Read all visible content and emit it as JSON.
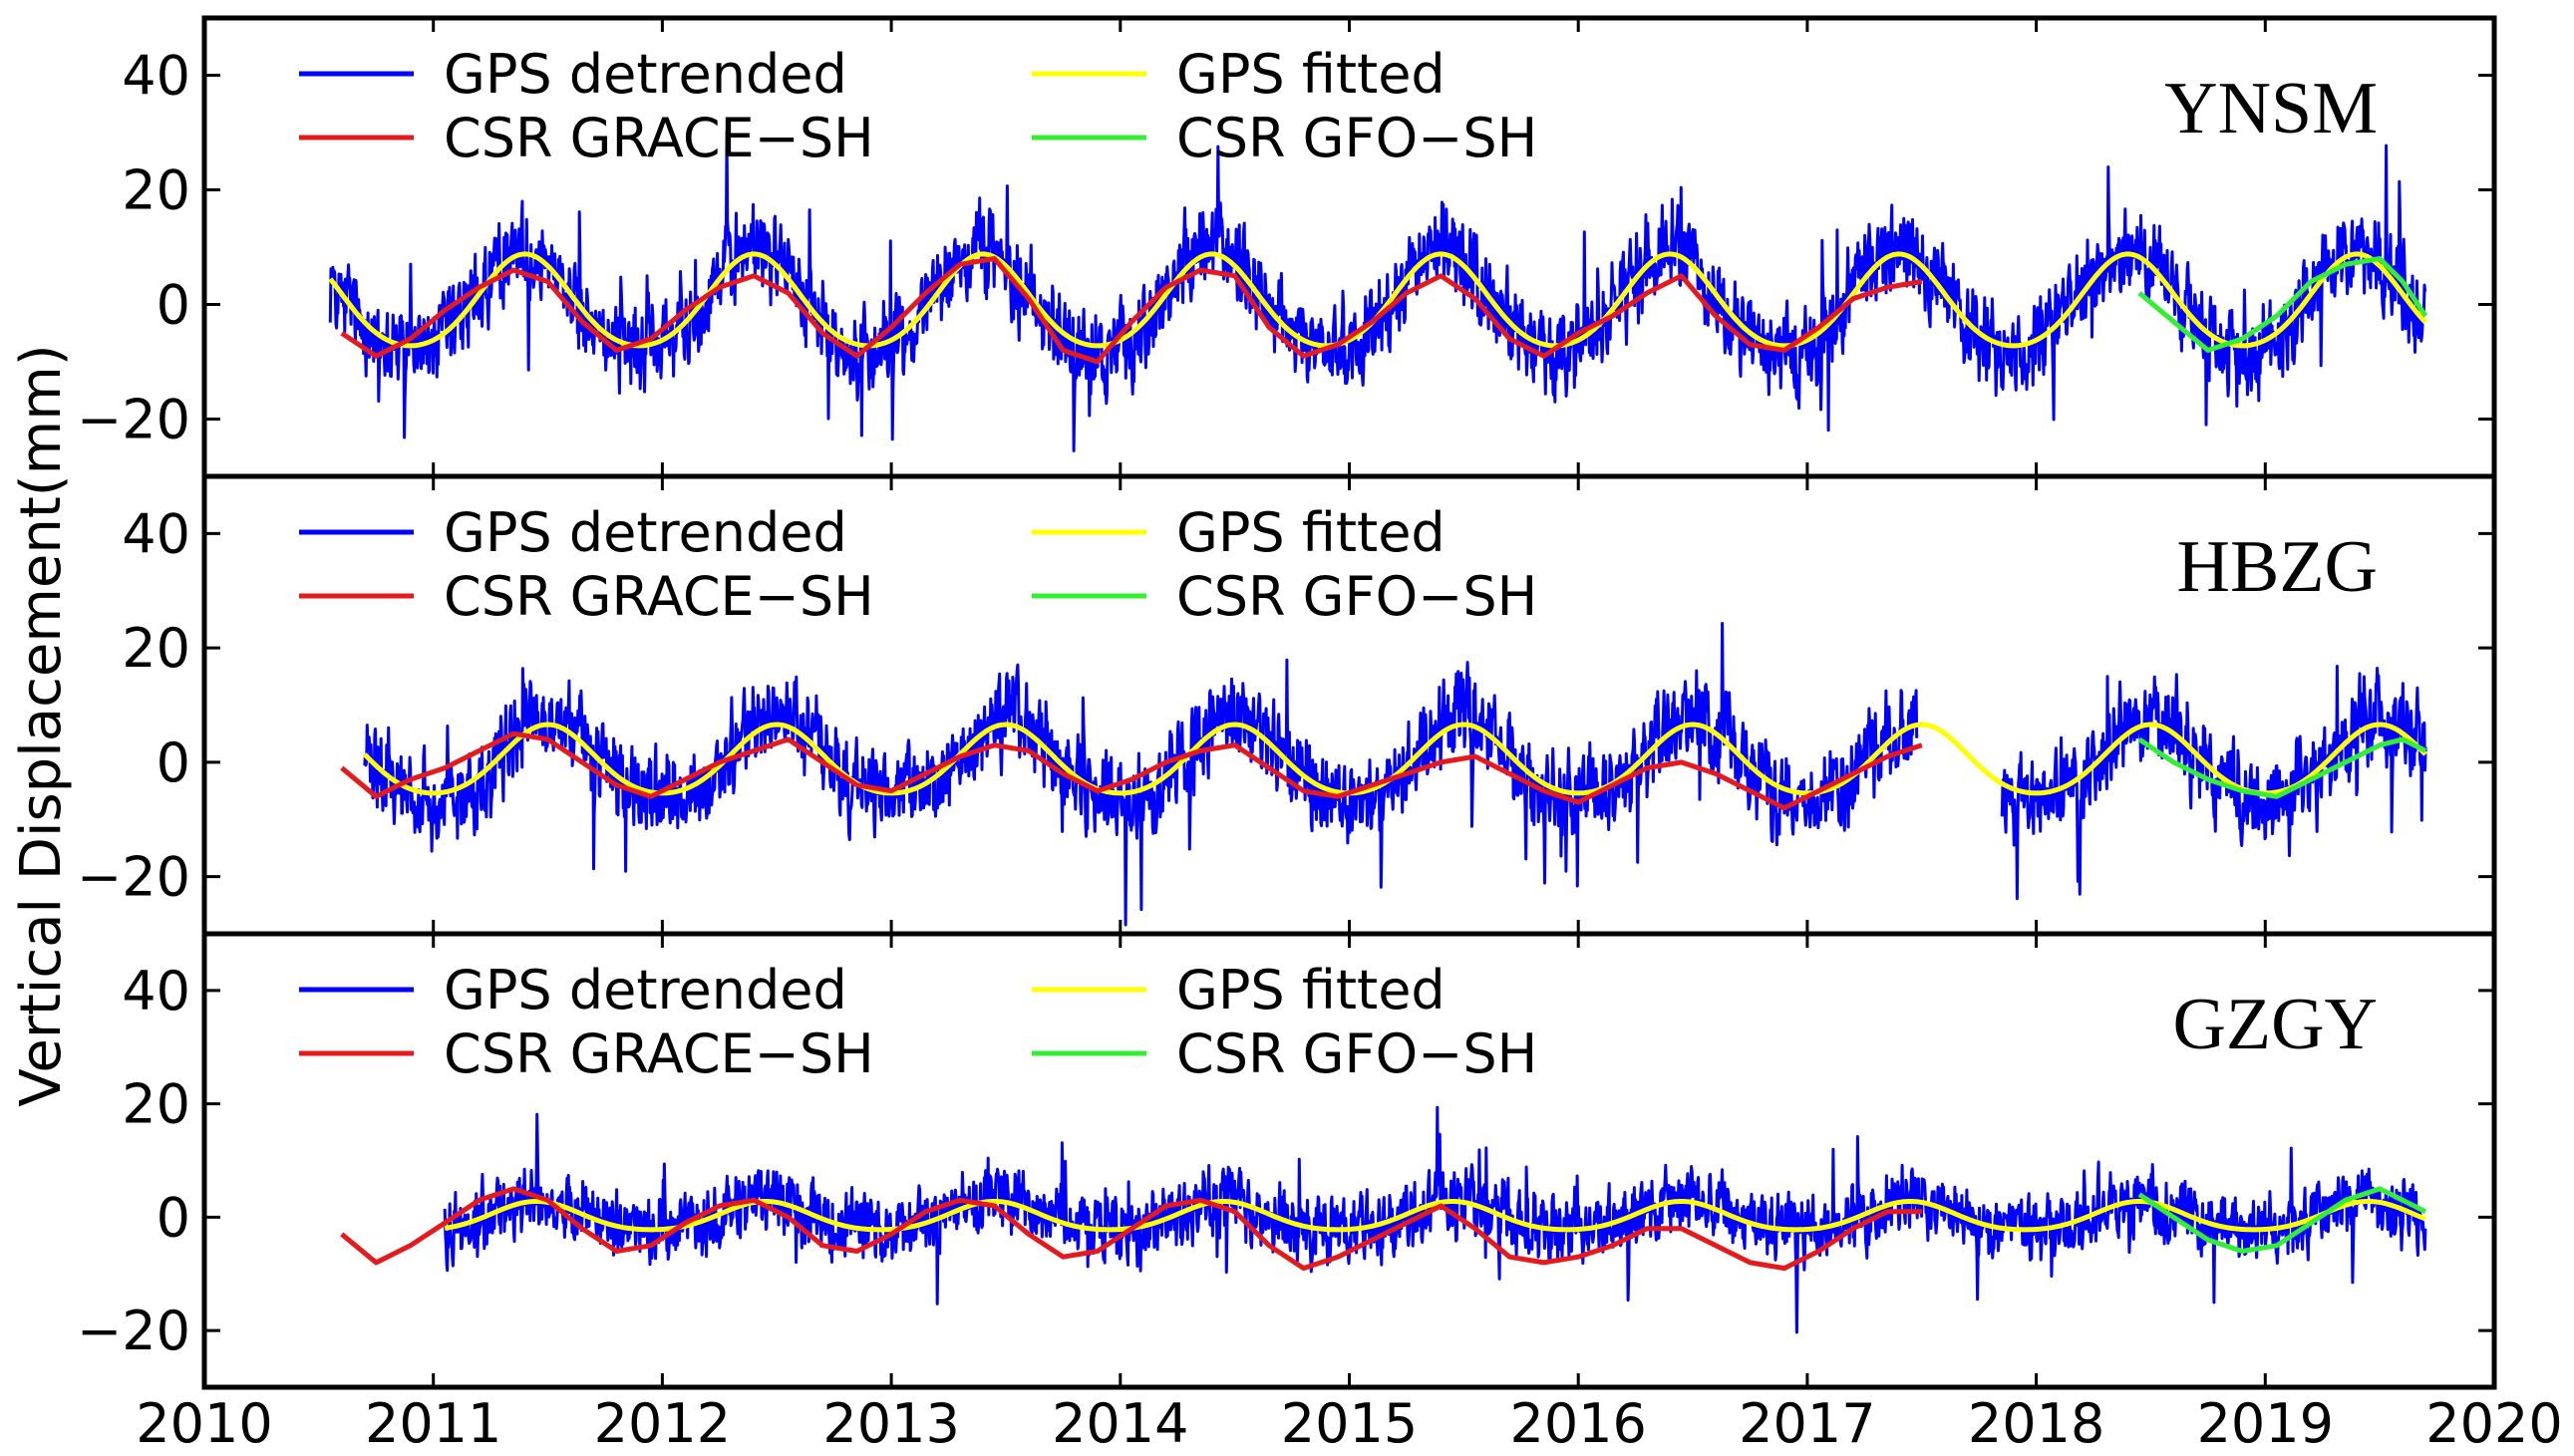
{
  "chart_data": {
    "type": "line",
    "ylabel": "Vertical Displacement(mm)",
    "xlabel": "",
    "xlim": [
      2010,
      2020
    ],
    "x_ticks": [
      "2010",
      "2011",
      "2012",
      "2013",
      "2014",
      "2015",
      "2016",
      "2017",
      "2018",
      "2019",
      "2020"
    ],
    "colors": {
      "gps_detrended": "#0000ff",
      "gps_fitted": "#ffff00",
      "grace": "#e41a1c",
      "gfo": "#33ee33"
    },
    "legend": [
      "GPS detrended",
      "GPS fitted",
      "CSR GRACE−SH",
      "CSR GFO−SH"
    ],
    "panels": [
      {
        "station": "YNSM",
        "ylim": [
          -30,
          50
        ],
        "y_ticks": [
          "40",
          "20",
          "0",
          "−20"
        ],
        "gps_detrended": {
          "start": 2010.55,
          "end": 2019.7,
          "annual_amplitude": 9,
          "annual_peak": 0.4,
          "semiannual_amplitude": 1,
          "noise": 6.5,
          "offset": 0
        },
        "gps_fitted": {
          "start": 2010.55,
          "end": 2019.7,
          "annual_amplitude": 8,
          "annual_peak": 0.4,
          "semiannual_amplitude": 0.8,
          "offset": 0
        },
        "grace": [
          [
            2010.6,
            -5
          ],
          [
            2010.75,
            -9
          ],
          [
            2010.9,
            -6
          ],
          [
            2011.05,
            -1
          ],
          [
            2011.2,
            3
          ],
          [
            2011.35,
            6
          ],
          [
            2011.5,
            4
          ],
          [
            2011.65,
            -3
          ],
          [
            2011.8,
            -8
          ],
          [
            2011.95,
            -6
          ],
          [
            2012.1,
            -1
          ],
          [
            2012.25,
            3
          ],
          [
            2012.4,
            5
          ],
          [
            2012.55,
            2
          ],
          [
            2012.7,
            -5
          ],
          [
            2012.85,
            -9
          ],
          [
            2013.0,
            -4
          ],
          [
            2013.15,
            2
          ],
          [
            2013.3,
            7
          ],
          [
            2013.45,
            8
          ],
          [
            2013.6,
            1
          ],
          [
            2013.75,
            -8
          ],
          [
            2013.9,
            -10
          ],
          [
            2014.05,
            -3
          ],
          [
            2014.2,
            3
          ],
          [
            2014.35,
            6
          ],
          [
            2014.5,
            5
          ],
          [
            2014.65,
            -4
          ],
          [
            2014.8,
            -9
          ],
          [
            2014.95,
            -7
          ],
          [
            2015.1,
            -3
          ],
          [
            2015.25,
            2
          ],
          [
            2015.4,
            5
          ],
          [
            2015.55,
            1
          ],
          [
            2015.7,
            -6
          ],
          [
            2015.85,
            -9
          ],
          [
            2016.0,
            -5
          ],
          [
            2016.15,
            -2
          ],
          [
            2016.3,
            2
          ],
          [
            2016.45,
            5
          ],
          [
            2016.6,
            -2
          ],
          [
            2016.75,
            -7
          ],
          [
            2016.9,
            -8
          ],
          [
            2017.05,
            -4
          ],
          [
            2017.2,
            1
          ],
          [
            2017.35,
            3
          ],
          [
            2017.5,
            4
          ]
        ],
        "gfo": [
          [
            2018.45,
            2
          ],
          [
            2018.6,
            -3
          ],
          [
            2018.75,
            -8
          ],
          [
            2018.9,
            -6
          ],
          [
            2019.05,
            -2
          ],
          [
            2019.2,
            4
          ],
          [
            2019.35,
            7
          ],
          [
            2019.5,
            8
          ],
          [
            2019.6,
            4
          ],
          [
            2019.7,
            -2
          ]
        ]
      },
      {
        "station": "HBZG",
        "ylim": [
          -30,
          50
        ],
        "y_ticks": [
          "40",
          "20",
          "0",
          "−20"
        ],
        "gps_detrended": {
          "start": 2010.7,
          "end": 2019.7,
          "annual_amplitude": 7,
          "annual_peak": 0.5,
          "semiannual_amplitude": 1,
          "noise": 6.5,
          "offset": 0,
          "gaps": [
            [
              2017.48,
              2017.85
            ]
          ]
        },
        "gps_fitted": {
          "start": 2010.7,
          "end": 2019.7,
          "annual_amplitude": 6,
          "annual_peak": 0.5,
          "semiannual_amplitude": 0.6,
          "offset": 0
        },
        "grace": [
          [
            2010.6,
            -1
          ],
          [
            2010.75,
            -6
          ],
          [
            2010.9,
            -3
          ],
          [
            2011.05,
            -1
          ],
          [
            2011.2,
            2
          ],
          [
            2011.35,
            5
          ],
          [
            2011.5,
            4
          ],
          [
            2011.65,
            0
          ],
          [
            2011.8,
            -4
          ],
          [
            2011.95,
            -6
          ],
          [
            2012.1,
            -3
          ],
          [
            2012.25,
            0
          ],
          [
            2012.4,
            2
          ],
          [
            2012.55,
            4
          ],
          [
            2012.7,
            0
          ],
          [
            2012.85,
            -4
          ],
          [
            2013.0,
            -5
          ],
          [
            2013.15,
            -2
          ],
          [
            2013.3,
            1
          ],
          [
            2013.45,
            3
          ],
          [
            2013.6,
            2
          ],
          [
            2013.75,
            -2
          ],
          [
            2013.9,
            -5
          ],
          [
            2014.05,
            -3
          ],
          [
            2014.2,
            0
          ],
          [
            2014.35,
            2
          ],
          [
            2014.5,
            3
          ],
          [
            2014.65,
            -1
          ],
          [
            2014.8,
            -5
          ],
          [
            2014.95,
            -6
          ],
          [
            2015.1,
            -4
          ],
          [
            2015.25,
            -2
          ],
          [
            2015.4,
            0
          ],
          [
            2015.55,
            1
          ],
          [
            2015.7,
            -2
          ],
          [
            2015.85,
            -5
          ],
          [
            2016.0,
            -7
          ],
          [
            2016.15,
            -4
          ],
          [
            2016.3,
            -1
          ],
          [
            2016.45,
            0
          ],
          [
            2016.6,
            -2
          ],
          [
            2016.75,
            -5
          ],
          [
            2016.9,
            -8
          ],
          [
            2017.05,
            -5
          ],
          [
            2017.2,
            -2
          ],
          [
            2017.35,
            1
          ],
          [
            2017.5,
            3
          ]
        ],
        "gfo": [
          [
            2018.45,
            4
          ],
          [
            2018.6,
            0
          ],
          [
            2018.75,
            -3
          ],
          [
            2018.9,
            -5
          ],
          [
            2019.05,
            -6
          ],
          [
            2019.2,
            -3
          ],
          [
            2019.35,
            0
          ],
          [
            2019.5,
            3
          ],
          [
            2019.6,
            4
          ],
          [
            2019.7,
            2
          ]
        ]
      },
      {
        "station": "GZGY",
        "ylim": [
          -30,
          50
        ],
        "y_ticks": [
          "40",
          "20",
          "0",
          "−20"
        ],
        "gps_detrended": {
          "start": 2011.05,
          "end": 2019.7,
          "annual_amplitude": 2.5,
          "annual_peak": 0.45,
          "semiannual_amplitude": 0.5,
          "noise": 5,
          "offset": 0
        },
        "gps_fitted": {
          "start": 2011.05,
          "end": 2019.7,
          "annual_amplitude": 2.5,
          "annual_peak": 0.45,
          "semiannual_amplitude": 0.3,
          "offset": 0
        },
        "grace": [
          [
            2010.6,
            -3
          ],
          [
            2010.75,
            -8
          ],
          [
            2010.9,
            -5
          ],
          [
            2011.05,
            -1
          ],
          [
            2011.2,
            3
          ],
          [
            2011.35,
            5
          ],
          [
            2011.5,
            3
          ],
          [
            2011.65,
            -2
          ],
          [
            2011.8,
            -6
          ],
          [
            2011.95,
            -5
          ],
          [
            2012.1,
            -1
          ],
          [
            2012.25,
            2
          ],
          [
            2012.4,
            3
          ],
          [
            2012.55,
            0
          ],
          [
            2012.7,
            -5
          ],
          [
            2012.85,
            -6
          ],
          [
            2013.0,
            -3
          ],
          [
            2013.15,
            1
          ],
          [
            2013.3,
            3
          ],
          [
            2013.45,
            2
          ],
          [
            2013.6,
            -3
          ],
          [
            2013.75,
            -7
          ],
          [
            2013.9,
            -6
          ],
          [
            2014.05,
            -2
          ],
          [
            2014.2,
            2
          ],
          [
            2014.35,
            3
          ],
          [
            2014.5,
            1
          ],
          [
            2014.65,
            -5
          ],
          [
            2014.8,
            -9
          ],
          [
            2014.95,
            -7
          ],
          [
            2015.1,
            -4
          ],
          [
            2015.25,
            -1
          ],
          [
            2015.4,
            2
          ],
          [
            2015.55,
            -2
          ],
          [
            2015.7,
            -7
          ],
          [
            2015.85,
            -8
          ],
          [
            2016.0,
            -7
          ],
          [
            2016.15,
            -5
          ],
          [
            2016.3,
            -2
          ],
          [
            2016.45,
            -2
          ],
          [
            2016.6,
            -5
          ],
          [
            2016.75,
            -8
          ],
          [
            2016.9,
            -9
          ],
          [
            2017.05,
            -6
          ],
          [
            2017.2,
            -2
          ],
          [
            2017.35,
            1
          ],
          [
            2017.5,
            1
          ]
        ],
        "gfo": [
          [
            2018.45,
            4
          ],
          [
            2018.6,
            0
          ],
          [
            2018.75,
            -4
          ],
          [
            2018.9,
            -6
          ],
          [
            2019.05,
            -5
          ],
          [
            2019.2,
            -1
          ],
          [
            2019.35,
            3
          ],
          [
            2019.5,
            5
          ],
          [
            2019.6,
            3
          ],
          [
            2019.7,
            1
          ]
        ]
      }
    ]
  }
}
